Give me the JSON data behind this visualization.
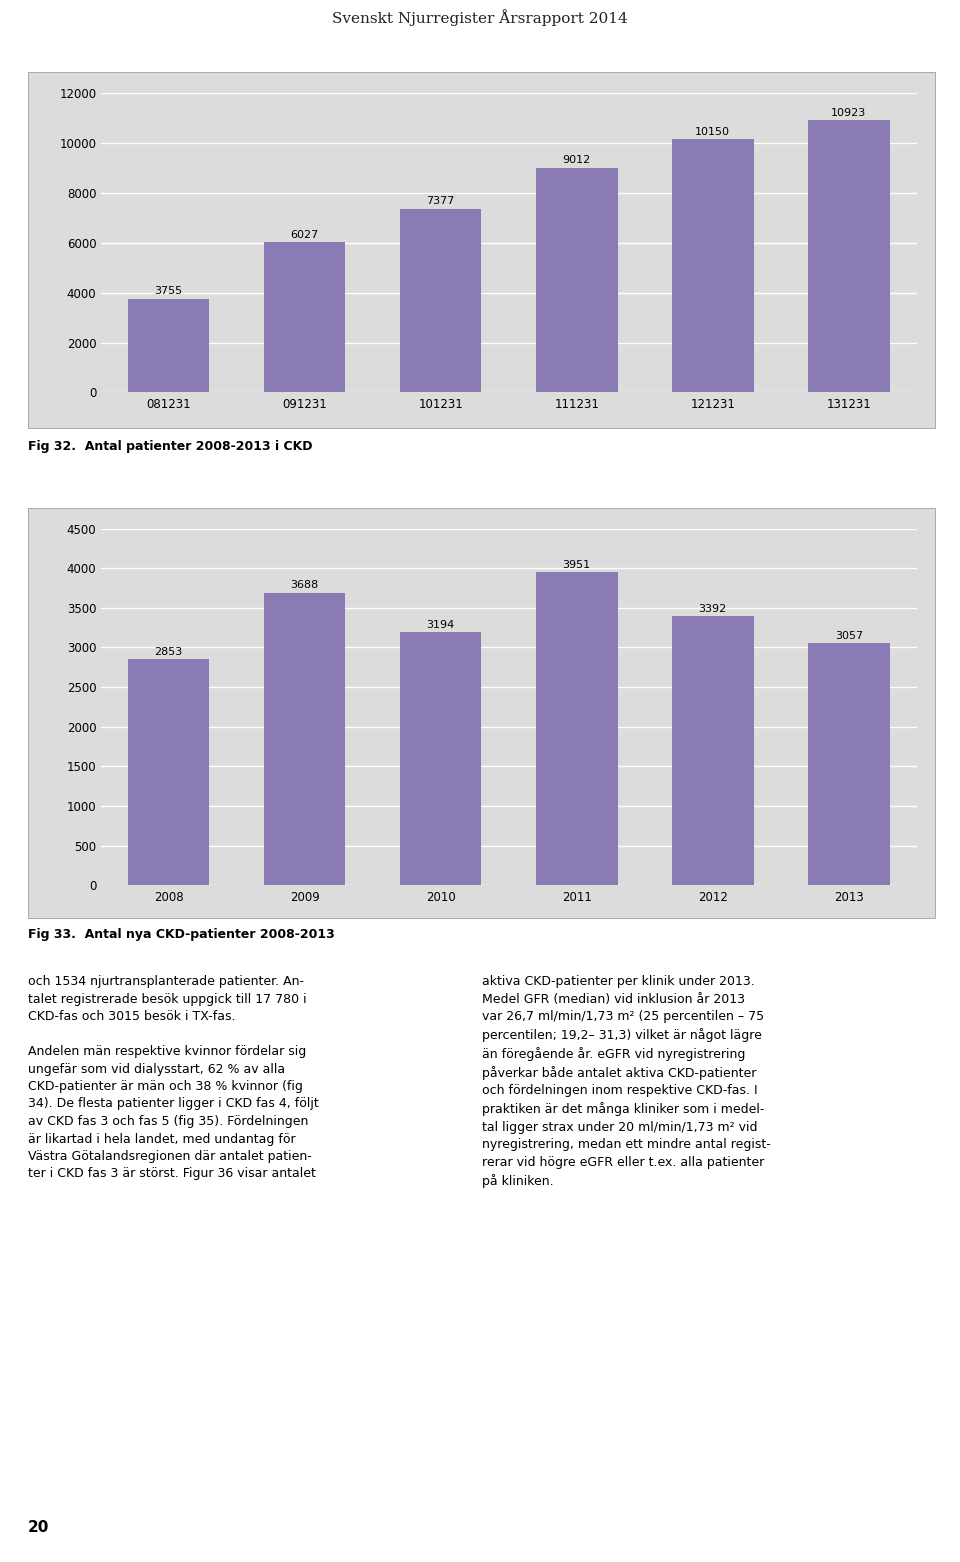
{
  "title": "Svenskt Njurregister Årsrapport 2014",
  "chart1": {
    "categories": [
      "081231",
      "091231",
      "101231",
      "111231",
      "121231",
      "131231"
    ],
    "values": [
      3755,
      6027,
      7377,
      9012,
      10150,
      10923
    ],
    "ylim": [
      0,
      12000
    ],
    "yticks": [
      0,
      2000,
      4000,
      6000,
      8000,
      10000,
      12000
    ],
    "bar_color": "#8B7BB5",
    "bg_color": "#DCDCDC",
    "caption": "Fig 32.  Antal patienter 2008-2013 i CKD"
  },
  "chart2": {
    "categories": [
      "2008",
      "2009",
      "2010",
      "2011",
      "2012",
      "2013"
    ],
    "values": [
      2853,
      3688,
      3194,
      3951,
      3392,
      3057
    ],
    "ylim": [
      0,
      4500
    ],
    "yticks": [
      0,
      500,
      1000,
      1500,
      2000,
      2500,
      3000,
      3500,
      4000,
      4500
    ],
    "bar_color": "#8B7BB5",
    "bg_color": "#DCDCDC",
    "caption": "Fig 33.  Antal nya CKD-patienter 2008-2013"
  },
  "text_left": [
    "och 1534 njurtransplanterade patienter. An-",
    "talet registrerade besök uppgick till 17 780 i",
    "CKD-fas och 3015 besök i TX-fas.",
    "",
    "Andelen män respektive kvinnor fördelar sig",
    "ungefär som vid dialysstart, 62 % av alla",
    "CKD-patienter är män och 38 % kvinnor (fig",
    "34). De flesta patienter ligger i CKD fas 4, följt",
    "av CKD fas 3 och fas 5 (fig 35). Fördelningen",
    "är likartad i hela landet, med undantag för",
    "Västra Götalandsregionen där antalet patien-",
    "ter i CKD fas 3 är störst. Figur 36 visar antalet"
  ],
  "text_right": [
    "aktiva CKD-patienter per klinik under 2013.",
    "Medel GFR (median) vid inklusion år 2013",
    "var 26,7 ml/min/1,73 m² (25 percentilen – 75",
    "percentilen; 19,2– 31,3) vilket är något lägre",
    "än föregående år. eGFR vid nyregistrering",
    "påverkar både antalet aktiva CKD-patienter",
    "och fördelningen inom respektive CKD-fas. I",
    "praktiken är det många kliniker som i medel-",
    "tal ligger strax under 20 ml/min/1,73 m² vid",
    "nyregistrering, medan ett mindre antal regist-",
    "rerar vid högre eGFR eller t.ex. alla patienter",
    "på kliniken."
  ],
  "page_number": "20",
  "title_fontsize": 11,
  "bar_label_fontsize": 8,
  "axis_tick_fontsize": 8.5,
  "caption_fontsize": 9,
  "body_fontsize": 9
}
